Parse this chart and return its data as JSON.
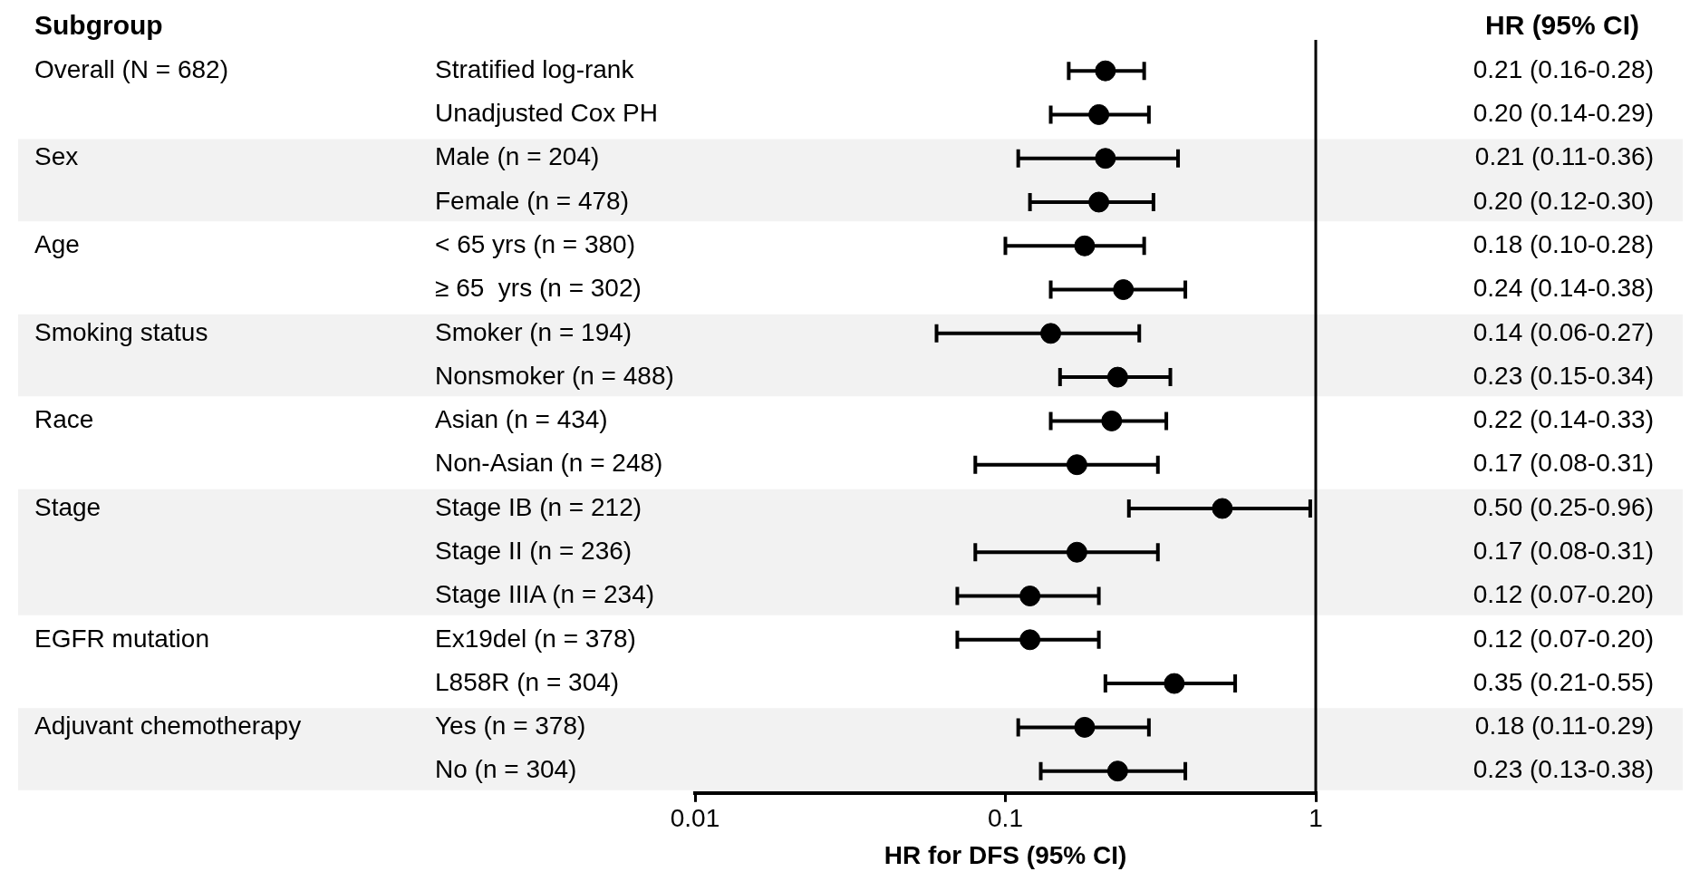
{
  "chart_data": {
    "type": "scatter",
    "orientation": "horizontal",
    "log": "x",
    "marker": "circle",
    "grid": false,
    "xlabel": "HR for DFS (95% CI)",
    "categories": [
      "Stratified log-rank",
      "Unadjusted Cox PH",
      "Male (n = 204)",
      "Female (n = 478)",
      "< 65 yrs (n = 380)",
      "≥ 65  yrs (n = 302)",
      "Smoker (n = 194)",
      "Nonsmoker (n = 488)",
      "Asian (n = 434)",
      "Non-Asian (n = 248)",
      "Stage IB (n = 212)",
      "Stage II (n = 236)",
      "Stage IIIA (n = 234)",
      "Ex19del (n = 378)",
      "L858R (n = 304)",
      "Yes (n = 378)",
      "No (n = 304)"
    ],
    "series": [
      {
        "color": "#000000",
        "values": [
          0.21,
          0.2,
          0.21,
          0.2,
          0.18,
          0.24,
          0.14,
          0.23,
          0.22,
          0.17,
          0.5,
          0.17,
          0.12,
          0.12,
          0.35,
          0.18,
          0.23
        ],
        "errors": [
          [
            0.16,
            0.28
          ],
          [
            0.14,
            0.29
          ],
          [
            0.11,
            0.36
          ],
          [
            0.12,
            0.3
          ],
          [
            0.1,
            0.28
          ],
          [
            0.14,
            0.38
          ],
          [
            0.06,
            0.27
          ],
          [
            0.15,
            0.34
          ],
          [
            0.14,
            0.33
          ],
          [
            0.08,
            0.31
          ],
          [
            0.25,
            0.96
          ],
          [
            0.08,
            0.31
          ],
          [
            0.07,
            0.2
          ],
          [
            0.07,
            0.2
          ],
          [
            0.21,
            0.55
          ],
          [
            0.11,
            0.29
          ],
          [
            0.13,
            0.38
          ]
        ],
        "value_labels": [
          "0.21 (0.16-0.28)",
          "0.20 (0.14-0.29)",
          "0.21 (0.11-0.36)",
          "0.20 (0.12-0.30)",
          "0.18 (0.10-0.28)",
          "0.24 (0.14-0.38)",
          "0.14 (0.06-0.27)",
          "0.23 (0.15-0.34)",
          "0.22 (0.14-0.33)",
          "0.17 (0.08-0.31)",
          "0.50 (0.25-0.96)",
          "0.17 (0.08-0.31)",
          "0.12 (0.07-0.20)",
          "0.12 (0.07-0.20)",
          "0.35 (0.21-0.55)",
          "0.18 (0.11-0.29)",
          "0.23 (0.13-0.38)"
        ]
      }
    ],
    "xlim": [
      0.01,
      1
    ],
    "xticks": [
      0.01,
      0.1,
      1
    ],
    "ref_lines": [
      {
        "axis": "x",
        "value": 1,
        "color": "#000000"
      }
    ],
    "bands": [
      {
        "axis": "y",
        "from": "Male (n = 204)",
        "to": "Female (n = 478)",
        "label": "Sex",
        "color": "#f2f2f2"
      },
      {
        "axis": "y",
        "from": "Smoker (n = 194)",
        "to": "Nonsmoker (n = 488)",
        "label": "Smoking status",
        "color": "#f2f2f2"
      },
      {
        "axis": "y",
        "from": "Stage IB (n = 212)",
        "to": "Stage IIIA (n = 234)",
        "label": "Stage",
        "color": "#f2f2f2"
      },
      {
        "axis": "y",
        "from": "Yes (n = 378)",
        "to": "No (n = 304)",
        "label": "Adjuvant chemotherapy",
        "color": "#f2f2f2"
      }
    ],
    "annotations": [
      "Subgroup",
      "HR (95% CI)",
      "Overall (N = 682)",
      "Age",
      "Race",
      "EGFR mutation"
    ]
  }
}
